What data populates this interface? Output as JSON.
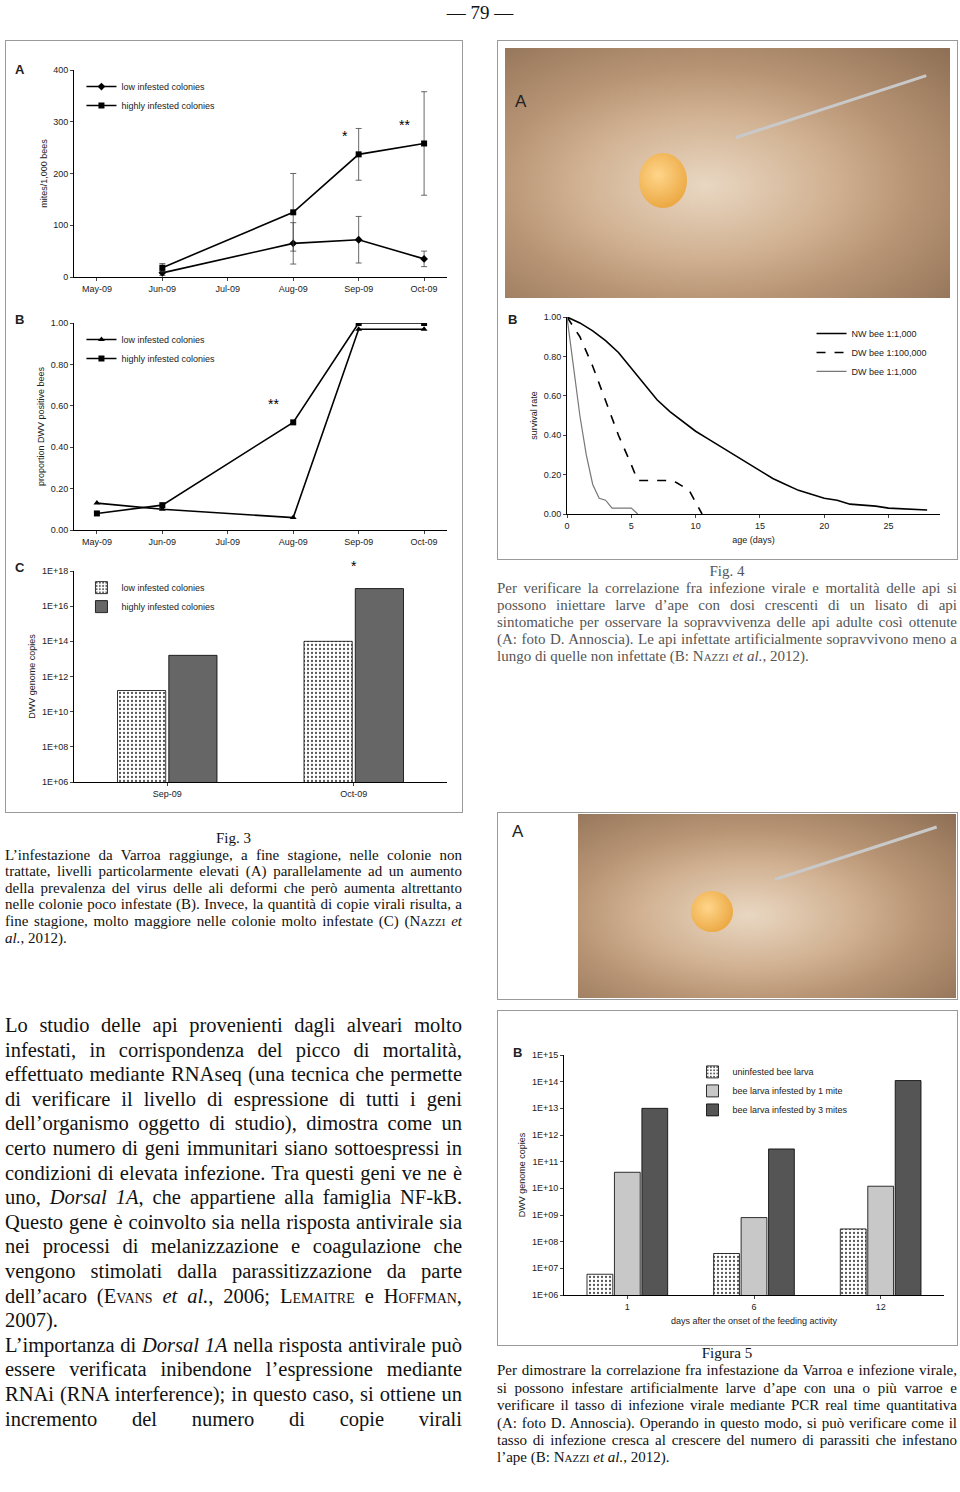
{
  "header": {
    "page_number": "— 79 —"
  },
  "chart_data": [
    {
      "panel": "A",
      "type": "line",
      "categories": [
        "May-09",
        "Jun-09",
        "Jul-09",
        "Aug-09",
        "Sep-09",
        "Oct-09"
      ],
      "ylabel": "mites/1,000 bees",
      "ylim": [
        0,
        400
      ],
      "yticks": [
        0,
        100,
        200,
        300,
        400
      ],
      "grid": false,
      "legend": "upper left",
      "series": [
        {
          "name": "low infested colonies",
          "color": "#000000",
          "marker": "diamond",
          "values": [
            null,
            8,
            null,
            65,
            72,
            35
          ],
          "error": [
            null,
            5,
            null,
            40,
            45,
            15
          ]
        },
        {
          "name": "highly infested colonies",
          "color": "#000000",
          "marker": "square",
          "values": [
            null,
            18,
            null,
            125,
            237,
            258
          ],
          "error": [
            null,
            8,
            null,
            75,
            50,
            100
          ]
        }
      ],
      "annotations": [
        {
          "text": "*",
          "x": 4,
          "y": 253
        },
        {
          "text": "**",
          "x": 5,
          "y": 275
        }
      ]
    },
    {
      "panel": "B",
      "type": "line",
      "categories": [
        "May-09",
        "Jun-09",
        "Jul-09",
        "Aug-09",
        "Sep-09",
        "Oct-09"
      ],
      "ylabel": "proportion DWV positive bees",
      "ylim": [
        0,
        1
      ],
      "yticks": [
        {
          "value": 0,
          "label": "0.00"
        },
        {
          "value": 0.2,
          "label": "0.20"
        },
        {
          "value": 0.4,
          "label": "0.40"
        },
        {
          "value": 0.6,
          "label": "0.60"
        },
        {
          "value": 0.8,
          "label": "0.80"
        },
        {
          "value": 1,
          "label": "1.00"
        }
      ],
      "grid": false,
      "legend": "upper left",
      "series": [
        {
          "name": "low infested colonies",
          "color": "#000000",
          "marker": "triangle",
          "values": [
            0.13,
            0.1,
            null,
            0.06,
            0.97,
            0.97
          ]
        },
        {
          "name": "highly infested colonies",
          "color": "#000000",
          "marker": "square",
          "values": [
            0.08,
            0.12,
            null,
            0.52,
            1.0,
            1.0
          ]
        }
      ],
      "annotations": [
        {
          "text": "**",
          "x": 3,
          "y": 0.56
        }
      ]
    },
    {
      "panel": "C",
      "type": "bar",
      "log": "y",
      "categories": [
        "Sep-09",
        "Oct-09"
      ],
      "ylabel": "DWV genome copies",
      "ylim": [
        1000000,
        1000000000000000000
      ],
      "yticks": [
        {
          "value": 1000000,
          "label": "1E+06"
        },
        {
          "value": 100000000,
          "label": "1E+08"
        },
        {
          "value": 10000000000,
          "label": "1E+10"
        },
        {
          "value": 1000000000000,
          "label": "1E+12"
        },
        {
          "value": 100000000000000,
          "label": "1E+14"
        },
        {
          "value": 10000000000000000,
          "label": "1E+16"
        },
        {
          "value": 1000000000000000000,
          "label": "1E+18"
        }
      ],
      "grid": false,
      "legend": "upper left",
      "series": [
        {
          "name": "low infested colonies",
          "color": "#e8e8e8",
          "marker": "dotted",
          "values": [
            160000000000,
            100000000000000
          ]
        },
        {
          "name": "highly infested colonies",
          "color": "#666666",
          "values": [
            16000000000000,
            100000000000000000
          ]
        }
      ],
      "annotations": [
        {
          "text": "*",
          "x": 1,
          "y": 500000000000000000
        }
      ]
    },
    {
      "panel": "B",
      "type": "line",
      "xlabel": "age (days)",
      "ylabel": "survival rate",
      "xlim": [
        0,
        29
      ],
      "xticks": [
        0,
        5,
        10,
        15,
        20,
        25
      ],
      "ylim": [
        0,
        1
      ],
      "yticks": [
        {
          "value": 0,
          "label": "0.00"
        },
        {
          "value": 0.2,
          "label": "0.20"
        },
        {
          "value": 0.4,
          "label": "0.40"
        },
        {
          "value": 0.6,
          "label": "0.60"
        },
        {
          "value": 0.8,
          "label": "0.80"
        },
        {
          "value": 1,
          "label": "1.00"
        }
      ],
      "grid": false,
      "legend": "upper right",
      "series": [
        {
          "name": "NW bee 1:1,000",
          "color": "#000000",
          "line_style": "solid",
          "x": [
            0,
            1,
            2,
            3,
            4,
            5,
            6,
            7,
            8,
            9,
            10,
            11,
            12,
            13,
            14,
            15,
            16,
            17,
            18,
            19,
            20,
            21,
            22,
            24,
            25,
            28
          ],
          "values": [
            1,
            0.97,
            0.93,
            0.88,
            0.82,
            0.74,
            0.66,
            0.58,
            0.52,
            0.47,
            0.42,
            0.38,
            0.34,
            0.3,
            0.26,
            0.22,
            0.18,
            0.15,
            0.12,
            0.1,
            0.08,
            0.07,
            0.05,
            0.04,
            0.03,
            0.02
          ]
        },
        {
          "name": "DW bee 1:100,000",
          "color": "#000000",
          "line_style": "dash",
          "x": [
            0,
            1,
            2,
            3,
            4,
            5,
            5.5,
            8,
            8.5,
            9.5,
            10,
            10.5
          ],
          "values": [
            1,
            0.9,
            0.75,
            0.58,
            0.4,
            0.25,
            0.17,
            0.17,
            0.16,
            0.12,
            0.06,
            0
          ]
        },
        {
          "name": "DW bee 1:1,000",
          "color": "#777777",
          "line_style": "solid",
          "x": [
            0,
            0.5,
            1,
            1.5,
            2,
            2.5,
            3,
            3.5,
            5,
            5.5
          ],
          "values": [
            1,
            0.75,
            0.5,
            0.3,
            0.15,
            0.08,
            0.07,
            0.03,
            0.03,
            0
          ]
        }
      ]
    },
    {
      "panel": "B",
      "type": "bar",
      "log": "y",
      "categories": [
        "1",
        "6",
        "12"
      ],
      "xlabel": "days after the onset of the feeding activity",
      "ylabel": "DWV genome copies",
      "ylim": [
        1000000,
        1000000000000000
      ],
      "yticks": [
        {
          "value": 1000000,
          "label": "1E+06"
        },
        {
          "value": 10000000,
          "label": "1E+07"
        },
        {
          "value": 100000000,
          "label": "1E+08"
        },
        {
          "value": 1000000000,
          "label": "1E+09"
        },
        {
          "value": 10000000000,
          "label": "1E+10"
        },
        {
          "value": 100000000000,
          "label": "1E+11"
        },
        {
          "value": 1000000000000,
          "label": "1E+12"
        },
        {
          "value": 10000000000000,
          "label": "1E+13"
        },
        {
          "value": 100000000000000,
          "label": "1E+14"
        },
        {
          "value": 1000000000000000,
          "label": "1E+15"
        }
      ],
      "grid": false,
      "legend": "upper center",
      "series": [
        {
          "name": "uninfested bee larva",
          "color": "#f0f0f0",
          "marker": "dotted",
          "values": [
            6000000,
            36000000,
            300000000
          ]
        },
        {
          "name": "bee larva infested by 1 mite",
          "color": "#c8c8c8",
          "values": [
            40000000000,
            800000000,
            12000000000
          ]
        },
        {
          "name": "bee larva infested by 3 mites",
          "color": "#555555",
          "values": [
            10000000000000,
            300000000000,
            110000000000000
          ]
        }
      ]
    }
  ],
  "photos": [
    {
      "panel": "A"
    },
    {
      "panel": "A"
    }
  ],
  "captions": {
    "fig3": {
      "label": "Fig. 3",
      "text": [
        {
          "text": "L’infestazione da Varroa raggiunge, a fine stagione, nelle colonie non trattate, livelli particolarmente elevati (A) parallelamente ad un aumento della prevalenza del virus delle ali deformi che però aumenta altrettanto nelle colonie poco infestate (B). Invece, la quantità di copie virali risulta, a fine stagione, molto maggiore nelle colonie molto infestate (C) ("
        },
        {
          "text": "Nazzi",
          "style": "smallcaps"
        },
        {
          "text": " "
        },
        {
          "text": "et al.",
          "style": "italic"
        },
        {
          "text": ", 2012)."
        }
      ]
    },
    "fig4": {
      "label": "Fig. 4",
      "text": [
        {
          "text": "Per verificare la correlazione fra infezione virale e mortalità delle api si possono iniettare larve d’ape con dosi crescenti di un lisato di api sintomatiche per osservare la sopravvivenza delle api adulte così ottenute (A: foto D. Annoscia). Le api infettate artificialmente sopravvivono meno a lungo di quelle non infettate (B: "
        },
        {
          "text": "Nazzi",
          "style": "smallcaps"
        },
        {
          "text": " "
        },
        {
          "text": "et al.",
          "style": "italic"
        },
        {
          "text": ", 2012)."
        }
      ]
    },
    "fig5": {
      "label": "Figura 5",
      "text": [
        {
          "text": "Per dimostrare la correlazione fra infestazione da Varroa e infezione virale, si possono infestare artificialmente larve d’ape con una o più varroe e verificare il tasso di infezione virale mediante PCR real time quantitativa (A: foto D. Annoscia). Operando in questo modo, si può verificare come il tasso di infezione cresca al crescere del numero di parassiti che infestano l’ape (B: "
        },
        {
          "text": "Nazzi",
          "style": "smallcaps"
        },
        {
          "text": " "
        },
        {
          "text": "et al.",
          "style": "italic"
        },
        {
          "text": ", 2012)."
        }
      ]
    }
  },
  "body": [
    [
      {
        "text": "Lo studio delle api provenienti dagli alveari molto infestati, in corrispondenza del picco di mortalità, effettuato mediante RNAseq (una tecnica che permette di verificare il livello di espressione di tutti i geni dell’organismo oggetto di studio), dimostra come un certo numero di geni immunitari siano sottoespressi in condizioni di elevata infezione. Tra questi geni ve ne è uno, "
      },
      {
        "text": "Dorsal 1A",
        "style": "italic"
      },
      {
        "text": ", che appartiene alla famiglia NF-kB. Questo gene è coinvolto sia nella risposta antivirale sia nei processi di melanizzazione e coagulazione che vengono stimolati dalla parassitizzazione da parte dell’acaro ("
      },
      {
        "text": "Evans",
        "style": "smallcaps"
      },
      {
        "text": " "
      },
      {
        "text": "et al.",
        "style": "italic"
      },
      {
        "text": ", 2006; "
      },
      {
        "text": "Lemaitre",
        "style": "smallcaps"
      },
      {
        "text": " e "
      },
      {
        "text": "Hoffman",
        "style": "smallcaps"
      },
      {
        "text": ", 2007)."
      }
    ],
    [
      {
        "text": "L’importanza di "
      },
      {
        "text": "Dorsal 1A",
        "style": "italic"
      },
      {
        "text": " nella risposta antivirale può essere verificata inibendone l’espressione mediante RNAi (RNA interference); in questo caso, si ottiene un incremento del numero di copie virali"
      }
    ]
  ]
}
